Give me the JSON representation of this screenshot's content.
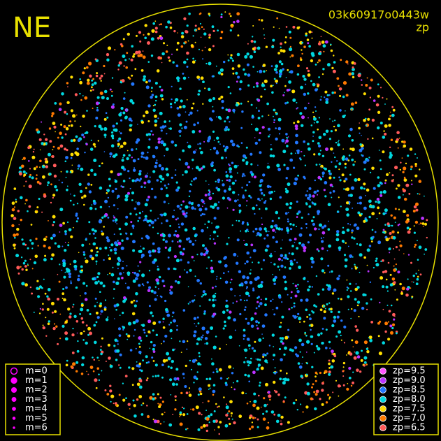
{
  "header": {
    "corner": "NE",
    "id": "03k60917o0443w",
    "mode": "zp"
  },
  "magnitude_legend": {
    "items": [
      "m=0",
      "m=1",
      "m=2",
      "m=3",
      "m=4",
      "m=5",
      "m=6"
    ],
    "color": "#ff00ff"
  },
  "zp_legend": {
    "items": [
      {
        "label": "zp=9.5",
        "color": "#ff55ff"
      },
      {
        "label": "zp=9.0",
        "color": "#bb33ff"
      },
      {
        "label": "zp=8.5",
        "color": "#2277ff"
      },
      {
        "label": "zp=8.0",
        "color": "#00d8e0"
      },
      {
        "label": "zp=7.5",
        "color": "#ffdd00"
      },
      {
        "label": "zp=7.0",
        "color": "#ff7a00"
      },
      {
        "label": "zp=6.5",
        "color": "#ff5a5a"
      }
    ]
  }
}
